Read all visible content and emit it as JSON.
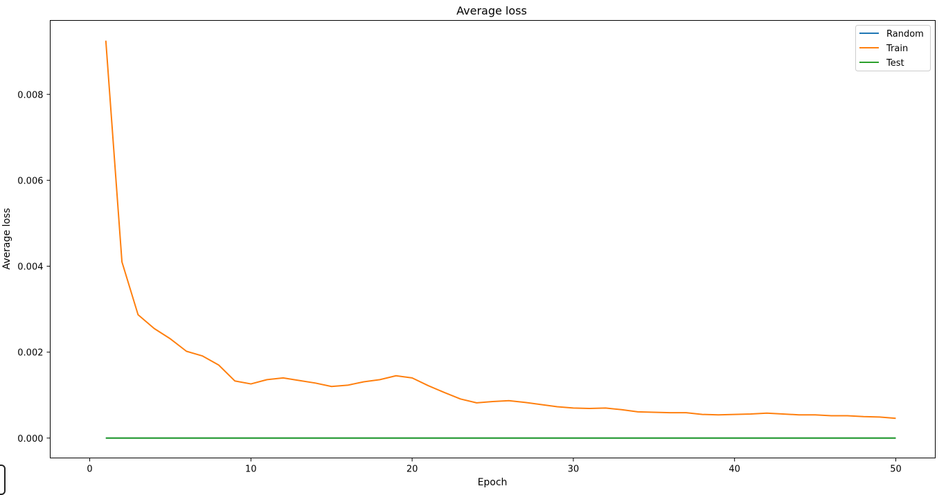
{
  "chart_data": {
    "type": "line",
    "title": "Average loss",
    "xlabel": "Epoch",
    "ylabel": "Average loss",
    "xlim": [
      -2.45,
      52.45
    ],
    "ylim": [
      -0.000463,
      0.00972
    ],
    "xticks": [
      0,
      10,
      20,
      30,
      40,
      50
    ],
    "xtick_labels": [
      "0",
      "10",
      "20",
      "30",
      "40",
      "50"
    ],
    "yticks": [
      0.0,
      0.002,
      0.004,
      0.006,
      0.008
    ],
    "ytick_labels": [
      "0.000",
      "0.002",
      "0.004",
      "0.006",
      "0.008"
    ],
    "grid": false,
    "legend_position": "top-right",
    "x": [
      1,
      2,
      3,
      4,
      5,
      6,
      7,
      8,
      9,
      10,
      11,
      12,
      13,
      14,
      15,
      16,
      17,
      18,
      19,
      20,
      21,
      22,
      23,
      24,
      25,
      26,
      27,
      28,
      29,
      30,
      31,
      32,
      33,
      34,
      35,
      36,
      37,
      38,
      39,
      40,
      41,
      42,
      43,
      44,
      45,
      46,
      47,
      48,
      49,
      50
    ],
    "series": [
      {
        "name": "Random",
        "color": "#1f77b4",
        "values": [
          0,
          0,
          0,
          0,
          0,
          0,
          0,
          0,
          0,
          0,
          0,
          0,
          0,
          0,
          0,
          0,
          0,
          0,
          0,
          0,
          0,
          0,
          0,
          0,
          0,
          0,
          0,
          0,
          0,
          0,
          0,
          0,
          0,
          0,
          0,
          0,
          0,
          0,
          0,
          0,
          0,
          0,
          0,
          0,
          0,
          0,
          0,
          0,
          0,
          0
        ]
      },
      {
        "name": "Train",
        "color": "#ff7f0e",
        "values": [
          0.00925,
          0.0041,
          0.00287,
          0.00255,
          0.00231,
          0.00202,
          0.00191,
          0.0017,
          0.00133,
          0.00126,
          0.00136,
          0.0014,
          0.00134,
          0.00128,
          0.0012,
          0.00123,
          0.00131,
          0.00136,
          0.00145,
          0.0014,
          0.00122,
          0.00106,
          0.00091,
          0.00082,
          0.00085,
          0.00087,
          0.00083,
          0.00078,
          0.00073,
          0.0007,
          0.00069,
          0.0007,
          0.00066,
          0.00061,
          0.0006,
          0.00059,
          0.00059,
          0.00055,
          0.00054,
          0.00055,
          0.00056,
          0.00058,
          0.00056,
          0.00054,
          0.00054,
          0.00052,
          0.00052,
          0.0005,
          0.00049,
          0.00046
        ]
      },
      {
        "name": "Test",
        "color": "#2ca02c",
        "values": [
          0,
          0,
          0,
          0,
          0,
          0,
          0,
          0,
          0,
          0,
          0,
          0,
          0,
          0,
          0,
          0,
          0,
          0,
          0,
          0,
          0,
          0,
          0,
          0,
          0,
          0,
          0,
          0,
          0,
          0,
          0,
          0,
          0,
          0,
          0,
          0,
          0,
          0,
          0,
          0,
          0,
          0,
          0,
          0,
          0,
          0,
          0,
          0,
          0,
          0
        ]
      }
    ]
  }
}
